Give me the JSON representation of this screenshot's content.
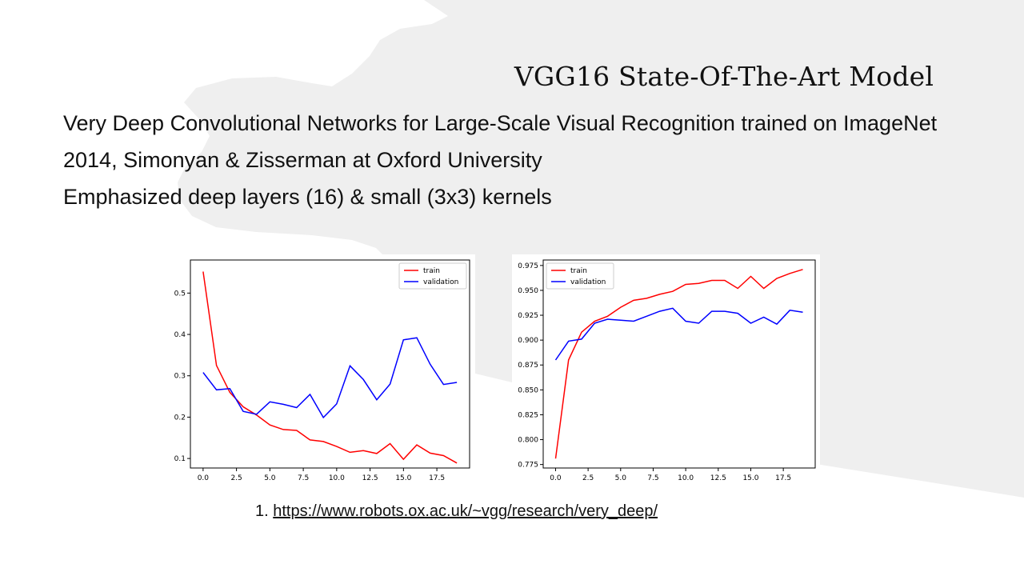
{
  "slide": {
    "title": "VGG16 State-Of-The-Art Model",
    "bullets": [
      "Very Deep Convolutional Networks for Large-Scale Visual Recognition trained on ImageNet",
      "2014, Simonyan & Zisserman at Oxford University",
      "Emphasized deep layers (16) & small (3x3) kernels"
    ],
    "reference": {
      "number": "1.",
      "url": "https://www.robots.ox.ac.uk/~vgg/research/very_deep/"
    },
    "colors": {
      "background_shape": "#efefef",
      "train": "#ff0000",
      "validation": "#0000ff"
    }
  },
  "chart_data": [
    {
      "type": "line",
      "xlim": [
        -0.95,
        19.95
      ],
      "ylim": [
        0.077,
        0.58
      ],
      "x_ticks": [
        0.0,
        2.5,
        5.0,
        7.5,
        10.0,
        12.5,
        15.0,
        17.5
      ],
      "x_tick_labels": [
        "0.0",
        "2.5",
        "5.0",
        "7.5",
        "10.0",
        "12.5",
        "15.0",
        "17.5"
      ],
      "y_ticks": [
        0.1,
        0.2,
        0.3,
        0.4,
        0.5
      ],
      "y_tick_labels": [
        "0.1",
        "0.2",
        "0.3",
        "0.4",
        "0.5"
      ],
      "legend_position": "top-right",
      "grid": false,
      "x": [
        0,
        1,
        2,
        3,
        4,
        5,
        6,
        7,
        8,
        9,
        10,
        11,
        12,
        13,
        14,
        15,
        16,
        17,
        18,
        19
      ],
      "series": [
        {
          "name": "train",
          "color": "#ff0000",
          "values": [
            0.552,
            0.325,
            0.26,
            0.225,
            0.205,
            0.181,
            0.17,
            0.168,
            0.145,
            0.141,
            0.129,
            0.115,
            0.119,
            0.112,
            0.136,
            0.098,
            0.133,
            0.113,
            0.107,
            0.089
          ]
        },
        {
          "name": "validation",
          "color": "#0000ff",
          "values": [
            0.308,
            0.266,
            0.269,
            0.214,
            0.207,
            0.237,
            0.231,
            0.223,
            0.255,
            0.199,
            0.232,
            0.324,
            0.291,
            0.242,
            0.28,
            0.387,
            0.392,
            0.328,
            0.279,
            0.284
          ]
        }
      ]
    },
    {
      "type": "line",
      "xlim": [
        -0.95,
        19.95
      ],
      "ylim": [
        0.7715,
        0.9805
      ],
      "x_ticks": [
        0.0,
        2.5,
        5.0,
        7.5,
        10.0,
        12.5,
        15.0,
        17.5
      ],
      "x_tick_labels": [
        "0.0",
        "2.5",
        "5.0",
        "7.5",
        "10.0",
        "12.5",
        "15.0",
        "17.5"
      ],
      "y_ticks": [
        0.775,
        0.8,
        0.825,
        0.85,
        0.875,
        0.9,
        0.925,
        0.95,
        0.975
      ],
      "y_tick_labels": [
        "0.775",
        "0.800",
        "0.825",
        "0.850",
        "0.875",
        "0.900",
        "0.925",
        "0.950",
        "0.975"
      ],
      "legend_position": "top-left",
      "grid": false,
      "x": [
        0,
        1,
        2,
        3,
        4,
        5,
        6,
        7,
        8,
        9,
        10,
        11,
        12,
        13,
        14,
        15,
        16,
        17,
        18,
        19
      ],
      "series": [
        {
          "name": "train",
          "color": "#ff0000",
          "values": [
            0.781,
            0.88,
            0.908,
            0.919,
            0.924,
            0.933,
            0.94,
            0.942,
            0.946,
            0.949,
            0.956,
            0.957,
            0.96,
            0.96,
            0.952,
            0.964,
            0.952,
            0.962,
            0.967,
            0.971
          ]
        },
        {
          "name": "validation",
          "color": "#0000ff",
          "values": [
            0.88,
            0.899,
            0.901,
            0.917,
            0.921,
            0.92,
            0.919,
            0.924,
            0.929,
            0.932,
            0.919,
            0.917,
            0.929,
            0.929,
            0.927,
            0.917,
            0.923,
            0.916,
            0.93,
            0.928
          ]
        }
      ]
    }
  ]
}
